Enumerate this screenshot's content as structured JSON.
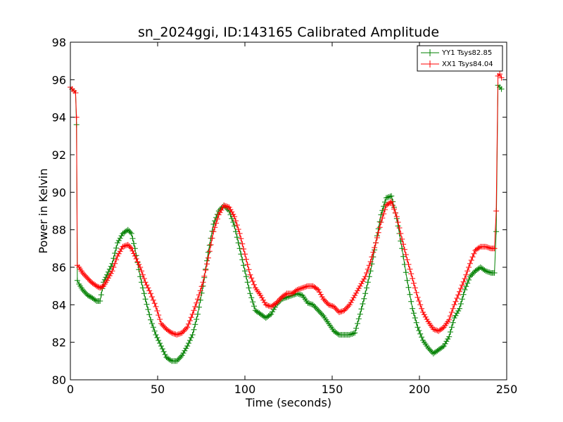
{
  "chart_data": {
    "type": "line",
    "title": "sn_2024ggi, ID:143165 Calibrated Amplitude",
    "xlabel": "Time (seconds)",
    "ylabel": "Power in Kelvin",
    "xlim": [
      0,
      250
    ],
    "ylim": [
      80,
      98
    ],
    "xticks": [
      0,
      50,
      100,
      150,
      200,
      250
    ],
    "yticks": [
      80,
      82,
      84,
      86,
      88,
      90,
      92,
      94,
      96,
      98
    ],
    "legend_position": "upper-right",
    "series": [
      {
        "name": "YY1 Tsys82.85",
        "color": "#008000",
        "marker": "+",
        "x": [
          0,
          1,
          2,
          3,
          3.5,
          4,
          5,
          7,
          10,
          12,
          15,
          17,
          19,
          21,
          24,
          27,
          30,
          33,
          35,
          37,
          40,
          43,
          46,
          49,
          52,
          55,
          58,
          61,
          64,
          67,
          70,
          73,
          76,
          79,
          82,
          85,
          88,
          91,
          94,
          97,
          100,
          103,
          106,
          109,
          112,
          115,
          118,
          121,
          124,
          127,
          130,
          133,
          136,
          139,
          142,
          145,
          148,
          151,
          154,
          157,
          160,
          163,
          166,
          169,
          172,
          175,
          178,
          181,
          184,
          187,
          190,
          193,
          196,
          199,
          202,
          205,
          208,
          211,
          214,
          217,
          220,
          223,
          226,
          229,
          232,
          235,
          238,
          241,
          243,
          244,
          245,
          246,
          247
        ],
        "y": [
          95.6,
          95.5,
          95.4,
          95.3,
          93.6,
          85.3,
          85.1,
          84.8,
          84.5,
          84.4,
          84.2,
          84.2,
          85.2,
          85.6,
          86.2,
          87.3,
          87.8,
          88.0,
          87.8,
          87.0,
          85.5,
          84.3,
          83.2,
          82.4,
          81.8,
          81.2,
          81.0,
          81.0,
          81.3,
          81.8,
          82.4,
          83.5,
          85.0,
          86.8,
          88.3,
          89.0,
          89.3,
          89.0,
          88.2,
          87.0,
          85.8,
          84.6,
          83.7,
          83.5,
          83.3,
          83.5,
          84.0,
          84.3,
          84.4,
          84.5,
          84.6,
          84.5,
          84.1,
          84.0,
          83.7,
          83.4,
          83.0,
          82.6,
          82.4,
          82.4,
          82.4,
          82.5,
          83.5,
          84.6,
          85.8,
          87.3,
          88.8,
          89.7,
          89.8,
          88.6,
          87.0,
          85.3,
          83.8,
          82.8,
          82.1,
          81.7,
          81.4,
          81.6,
          81.8,
          82.3,
          83.3,
          83.8,
          84.8,
          85.5,
          85.8,
          86.0,
          85.8,
          85.7,
          85.7,
          87.9,
          95.7,
          95.6,
          95.5
        ]
      },
      {
        "name": "XX1 Tsys84.04",
        "color": "#ff0000",
        "marker": "+",
        "x": [
          0,
          1,
          2,
          3,
          3.5,
          4,
          5,
          7,
          10,
          12,
          15,
          17,
          19,
          21,
          24,
          27,
          30,
          33,
          35,
          37,
          40,
          43,
          46,
          49,
          52,
          55,
          58,
          61,
          64,
          67,
          70,
          73,
          76,
          79,
          82,
          85,
          88,
          91,
          94,
          97,
          100,
          103,
          106,
          109,
          112,
          115,
          118,
          121,
          124,
          127,
          130,
          133,
          136,
          139,
          142,
          145,
          148,
          151,
          154,
          157,
          160,
          163,
          166,
          169,
          172,
          175,
          178,
          181,
          184,
          187,
          190,
          193,
          196,
          199,
          202,
          205,
          208,
          211,
          214,
          217,
          220,
          223,
          226,
          229,
          232,
          235,
          238,
          241,
          243,
          244,
          245,
          246,
          247
        ],
        "y": [
          95.6,
          95.5,
          95.4,
          95.3,
          94.0,
          86.1,
          86.0,
          85.7,
          85.4,
          85.2,
          85.0,
          84.9,
          85.0,
          85.3,
          85.8,
          86.6,
          87.1,
          87.2,
          87.0,
          86.6,
          86.0,
          85.2,
          84.6,
          83.9,
          83.0,
          82.7,
          82.5,
          82.4,
          82.5,
          82.8,
          83.5,
          84.3,
          85.2,
          86.5,
          87.9,
          88.8,
          89.3,
          89.2,
          88.7,
          87.8,
          86.7,
          85.6,
          84.9,
          84.5,
          84.0,
          83.9,
          84.1,
          84.4,
          84.6,
          84.6,
          84.8,
          84.9,
          85.0,
          85.0,
          84.8,
          84.3,
          84.0,
          83.9,
          83.6,
          83.7,
          84.0,
          84.5,
          85.0,
          85.5,
          86.3,
          87.3,
          88.4,
          89.3,
          89.5,
          88.7,
          87.5,
          86.4,
          85.4,
          84.4,
          83.6,
          83.1,
          82.7,
          82.6,
          82.8,
          83.2,
          84.0,
          84.7,
          85.4,
          86.2,
          86.9,
          87.1,
          87.1,
          87.0,
          87.0,
          89.0,
          96.2,
          96.3,
          96.1
        ]
      }
    ]
  }
}
